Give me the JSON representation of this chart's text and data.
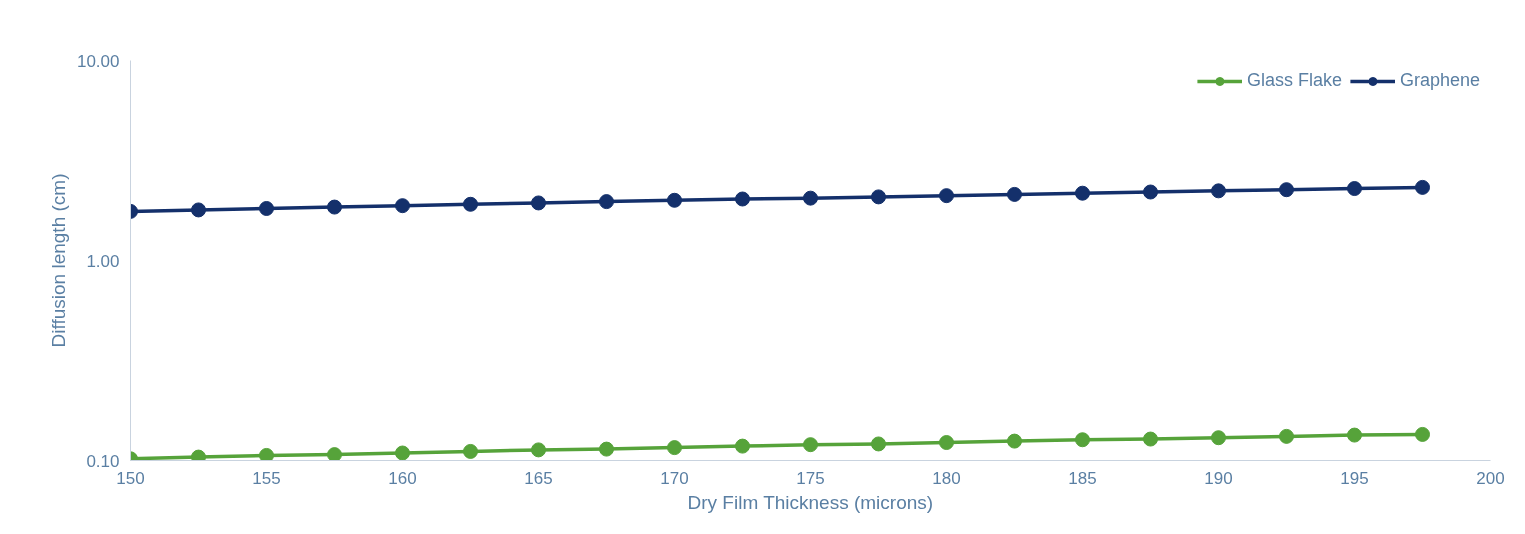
{
  "chart_data": {
    "type": "line",
    "xlabel": "Dry Film Thickness (microns)",
    "ylabel": "Diffusion length (cm)",
    "x": [
      150,
      152.5,
      155,
      157.5,
      160,
      162.5,
      165,
      167.5,
      170,
      172.5,
      175,
      177.5,
      180,
      182.5,
      185,
      187.5,
      190,
      192.5,
      195,
      197.5
    ],
    "series": [
      {
        "name": "Glass Flake",
        "color": "#56a33a",
        "values": [
          0.102,
          0.104,
          0.106,
          0.107,
          0.109,
          0.111,
          0.113,
          0.114,
          0.116,
          0.118,
          0.12,
          0.121,
          0.123,
          0.125,
          0.127,
          0.128,
          0.13,
          0.132,
          0.134,
          0.135
        ]
      },
      {
        "name": "Graphene",
        "color": "#14306b",
        "values": [
          1.76,
          1.79,
          1.82,
          1.85,
          1.88,
          1.91,
          1.94,
          1.97,
          2.0,
          2.03,
          2.05,
          2.08,
          2.11,
          2.14,
          2.17,
          2.2,
          2.23,
          2.26,
          2.29,
          2.32
        ]
      }
    ],
    "log": "y",
    "xlim": [
      150,
      200
    ],
    "xticks": [
      150,
      155,
      160,
      165,
      170,
      175,
      180,
      185,
      190,
      195,
      200
    ],
    "ylim": [
      0.1,
      10
    ],
    "yticks": [
      {
        "value": 0.1,
        "label": "0.10"
      },
      {
        "value": 1,
        "label": "1.00"
      },
      {
        "value": 10,
        "label": "10.00"
      }
    ],
    "grid": false,
    "legend": "top right",
    "marker": "circle",
    "line_style": "solid"
  }
}
